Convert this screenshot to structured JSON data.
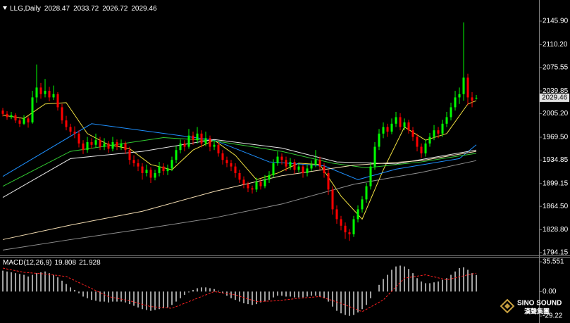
{
  "chart_data": [
    {
      "type": "candlestick",
      "title": "LLG,Daily",
      "xlim": [
        -0.667,
        126.83
      ],
      "ylim": [
        1790.94,
        2172.63
      ],
      "yticks": [
        {
          "value": 2145.9,
          "label": "2145.90"
        },
        {
          "value": 2110.2,
          "label": "2110.20"
        },
        2075.55,
        2039.85,
        {
          "value": 2005.2,
          "label": "2005.20"
        },
        {
          "value": 1969.5,
          "label": "1969.50"
        },
        1934.85,
        1899.15,
        {
          "value": 1864.5,
          "label": "1864.50"
        },
        {
          "value": 1828.8,
          "label": "1828.80"
        },
        1794.15
      ],
      "up_color": "#00ff00",
      "down_color": "#ff0000",
      "candles": [
        [
          2010,
          2014,
          2001,
          2005
        ],
        [
          2005,
          2009,
          1996,
          2000
        ],
        [
          2000,
          2008,
          1997,
          2003
        ],
        [
          2003,
          2006,
          1991,
          1995
        ],
        [
          1995,
          1999,
          1985,
          1990
        ],
        [
          1990,
          2003,
          1988,
          1998
        ],
        [
          1998,
          2001,
          1984,
          1992
        ],
        [
          1992,
          2040,
          1990,
          2030
        ],
        [
          2030,
          2080,
          2022,
          2045
        ],
        [
          2045,
          2052,
          2028,
          2035
        ],
        [
          2035,
          2058,
          2030,
          2040
        ],
        [
          2040,
          2046,
          2024,
          2030
        ],
        [
          2030,
          2048,
          2026,
          2035
        ],
        [
          2035,
          2038,
          2010,
          2015
        ],
        [
          2015,
          2020,
          1990,
          1995
        ],
        [
          1995,
          2002,
          1980,
          1985
        ],
        [
          1985,
          1990,
          1972,
          1978
        ],
        [
          1978,
          1986,
          1968,
          1975
        ],
        [
          1975,
          1980,
          1954,
          1960
        ],
        [
          1960,
          1965,
          1944,
          1950
        ],
        [
          1950,
          1970,
          1946,
          1962
        ],
        [
          1962,
          1968,
          1952,
          1958
        ],
        [
          1958,
          1975,
          1954,
          1965
        ],
        [
          1965,
          1970,
          1950,
          1955
        ],
        [
          1955,
          1968,
          1950,
          1960
        ],
        [
          1960,
          1964,
          1946,
          1952
        ],
        [
          1952,
          1970,
          1948,
          1962
        ],
        [
          1962,
          1966,
          1950,
          1955
        ],
        [
          1955,
          1966,
          1950,
          1960
        ],
        [
          1960,
          1963,
          1944,
          1950
        ],
        [
          1950,
          1955,
          1928,
          1935
        ],
        [
          1935,
          1942,
          1925,
          1930
        ],
        [
          1930,
          1936,
          1918,
          1925
        ],
        [
          1925,
          1930,
          1905,
          1915
        ],
        [
          1915,
          1928,
          1910,
          1920
        ],
        [
          1920,
          1924,
          1900,
          1908
        ],
        [
          1908,
          1920,
          1904,
          1915
        ],
        [
          1915,
          1932,
          1910,
          1925
        ],
        [
          1925,
          1930,
          1912,
          1918
        ],
        [
          1918,
          1928,
          1912,
          1922
        ],
        [
          1922,
          1940,
          1918,
          1935
        ],
        [
          1935,
          1956,
          1930,
          1950
        ],
        [
          1950,
          1966,
          1945,
          1960
        ],
        [
          1960,
          1965,
          1948,
          1955
        ],
        [
          1955,
          1982,
          1952,
          1972
        ],
        [
          1972,
          1978,
          1958,
          1965
        ],
        [
          1965,
          1985,
          1960,
          1975
        ],
        [
          1975,
          1980,
          1954,
          1960
        ],
        [
          1960,
          1978,
          1956,
          1968
        ],
        [
          1968,
          1972,
          1948,
          1955
        ],
        [
          1955,
          1965,
          1950,
          1958
        ],
        [
          1958,
          1962,
          1940,
          1945
        ],
        [
          1945,
          1950,
          1928,
          1935
        ],
        [
          1935,
          1940,
          1924,
          1930
        ],
        [
          1930,
          1935,
          1918,
          1925
        ],
        [
          1925,
          1930,
          1908,
          1915
        ],
        [
          1915,
          1920,
          1900,
          1905
        ],
        [
          1905,
          1910,
          1892,
          1898
        ],
        [
          1898,
          1902,
          1886,
          1892
        ],
        [
          1892,
          1896,
          1884,
          1890
        ],
        [
          1890,
          1908,
          1886,
          1902
        ],
        [
          1902,
          1906,
          1890,
          1895
        ],
        [
          1895,
          1912,
          1892,
          1905
        ],
        [
          1905,
          1918,
          1900,
          1912
        ],
        [
          1912,
          1936,
          1908,
          1930
        ],
        [
          1930,
          1948,
          1926,
          1940
        ],
        [
          1940,
          1945,
          1928,
          1935
        ],
        [
          1935,
          1940,
          1918,
          1925
        ],
        [
          1925,
          1938,
          1920,
          1932
        ],
        [
          1932,
          1936,
          1914,
          1920
        ],
        [
          1920,
          1930,
          1916,
          1925
        ],
        [
          1925,
          1928,
          1908,
          1915
        ],
        [
          1915,
          1928,
          1910,
          1922
        ],
        [
          1922,
          1934,
          1918,
          1928
        ],
        [
          1928,
          1950,
          1924,
          1935
        ],
        [
          1935,
          1940,
          1920,
          1925
        ],
        [
          1925,
          1930,
          1908,
          1915
        ],
        [
          1915,
          1920,
          1882,
          1890
        ],
        [
          1890,
          1895,
          1852,
          1860
        ],
        [
          1860,
          1866,
          1838,
          1845
        ],
        [
          1845,
          1850,
          1828,
          1835
        ],
        [
          1835,
          1840,
          1815,
          1825
        ],
        [
          1825,
          1830,
          1812,
          1822
        ],
        [
          1822,
          1850,
          1818,
          1845
        ],
        [
          1845,
          1866,
          1840,
          1860
        ],
        [
          1860,
          1880,
          1855,
          1875
        ],
        [
          1875,
          1900,
          1870,
          1895
        ],
        [
          1895,
          1932,
          1890,
          1925
        ],
        [
          1925,
          1962,
          1920,
          1955
        ],
        [
          1955,
          1982,
          1950,
          1975
        ],
        [
          1975,
          1992,
          1968,
          1985
        ],
        [
          1985,
          1990,
          1970,
          1978
        ],
        [
          1978,
          1998,
          1974,
          1990
        ],
        [
          1990,
          2008,
          1985,
          2000
        ],
        [
          2000,
          2006,
          1980,
          1985
        ],
        [
          1985,
          1998,
          1980,
          1992
        ],
        [
          1992,
          1996,
          1975,
          1980
        ],
        [
          1980,
          1985,
          1964,
          1970
        ],
        [
          1970,
          1975,
          1948,
          1955
        ],
        [
          1955,
          1960,
          1938,
          1945
        ],
        [
          1945,
          1966,
          1940,
          1960
        ],
        [
          1960,
          1976,
          1955,
          1970
        ],
        [
          1970,
          1988,
          1965,
          1980
        ],
        [
          1980,
          1985,
          1968,
          1975
        ],
        [
          1975,
          1996,
          1970,
          1990
        ],
        [
          1990,
          2008,
          1985,
          2000
        ],
        [
          2000,
          2022,
          1995,
          2015
        ],
        [
          2015,
          2040,
          2010,
          2030
        ],
        [
          2030,
          2045,
          2020,
          2035
        ],
        [
          2035,
          2144,
          2025,
          2060
        ],
        [
          2060,
          2066,
          2018,
          2030
        ],
        [
          2030,
          2038,
          2015,
          2025
        ],
        [
          2028.47,
          2033.72,
          2026.72,
          2029.46
        ]
      ],
      "series": [
        {
          "color": "#f0e040",
          "x": [
            0,
            5,
            10,
            15,
            20,
            25,
            30,
            35,
            40,
            45,
            50,
            55,
            60,
            65,
            70,
            75,
            80,
            85,
            90,
            95,
            100,
            105,
            110,
            112
          ],
          "values": [
            2003,
            1998,
            2020,
            2022,
            1975,
            1958,
            1952,
            1928,
            1920,
            1950,
            1965,
            1942,
            1905,
            1915,
            1930,
            1928,
            1880,
            1845,
            1920,
            1985,
            1965,
            1975,
            2020,
            2025
          ]
        },
        {
          "color": "#1e90ff",
          "x": [
            0,
            21,
            50,
            63,
            76,
            84,
            93,
            108,
            112
          ],
          "values": [
            1910,
            1990,
            1965,
            1932,
            1926,
            1905,
            1921,
            1937,
            1958
          ]
        },
        {
          "color": "#32cd32",
          "x": [
            0,
            16,
            38,
            50,
            66,
            78,
            86,
            99,
            112
          ],
          "values": [
            1895,
            1948,
            1969,
            1964,
            1948,
            1930,
            1923,
            1932,
            1945
          ]
        },
        {
          "color": "#e8e8e8",
          "x": [
            0,
            16,
            33,
            50,
            66,
            79,
            93,
            112
          ],
          "values": [
            1878,
            1937,
            1948,
            1966,
            1953,
            1932,
            1929,
            1950
          ]
        },
        {
          "color": "#f5deb3",
          "x": [
            0,
            16,
            33,
            50,
            66,
            83,
            99,
            112
          ],
          "values": [
            1814,
            1836,
            1857,
            1887,
            1911,
            1927,
            1934,
            1948
          ]
        },
        {
          "color": "#909090",
          "x": [
            0,
            16,
            33,
            50,
            66,
            83,
            99,
            112
          ],
          "values": [
            1798,
            1814,
            1830,
            1847,
            1868,
            1898,
            1916,
            1934
          ]
        }
      ]
    },
    {
      "type": "macd",
      "title": "MACD(12,26,9)",
      "xlim": [
        -0.667,
        126.83
      ],
      "ylim": [
        -35.9,
        39.8
      ],
      "yticks": [
        35.551,
        {
          "value": 0,
          "label": "0.00"
        },
        -29.22
      ],
      "histogram": {
        "color": "#c8c8c8",
        "values": [
          25,
          24,
          23,
          22,
          21,
          20,
          18,
          20,
          22,
          23,
          24,
          22,
          20,
          17,
          13,
          9,
          5,
          2,
          -2,
          -6,
          -8,
          -10,
          -11,
          -12,
          -12,
          -13,
          -12,
          -12,
          -12,
          -13,
          -15,
          -17,
          -19,
          -21,
          -22,
          -23,
          -22,
          -21,
          -20,
          -19,
          -16,
          -12,
          -8,
          -4,
          -1,
          2,
          4,
          5,
          5,
          4,
          3,
          1,
          -2,
          -5,
          -8,
          -10,
          -12,
          -14,
          -15,
          -16,
          -15,
          -13,
          -12,
          -10,
          -7,
          -5,
          -5,
          -6,
          -6,
          -7,
          -7,
          -7,
          -6,
          -5,
          -5,
          -6,
          -8,
          -12,
          -18,
          -23,
          -26,
          -28,
          -29,
          -28,
          -25,
          -21,
          -16,
          -8,
          0,
          8,
          15,
          20,
          26,
          30,
          31,
          30,
          27,
          22,
          16,
          12,
          10,
          10,
          11,
          12,
          14,
          16,
          20,
          24,
          28,
          29,
          26,
          22,
          19.808
        ]
      },
      "signal": {
        "color": "#ff2020",
        "x": [
          0,
          5,
          10,
          15,
          20,
          25,
          30,
          35,
          40,
          45,
          50,
          55,
          60,
          65,
          70,
          75,
          80,
          85,
          90,
          95,
          100,
          105,
          110,
          112
        ],
        "values": [
          28,
          23,
          21,
          18,
          6,
          -6,
          -11,
          -18,
          -20,
          -10,
          0,
          -4,
          -12,
          -11,
          -8,
          -6,
          -14,
          -24,
          -10,
          16,
          20,
          14,
          20,
          21.928
        ]
      }
    }
  ],
  "logo": {
    "brand": "SINO SOUND",
    "subtitle": "漢聲集團"
  }
}
